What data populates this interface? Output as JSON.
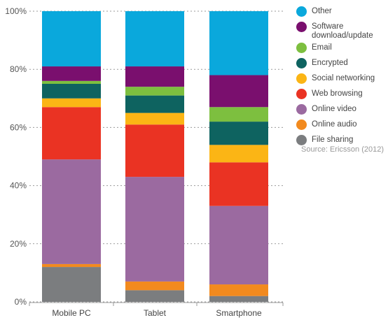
{
  "chart_data": {
    "type": "bar",
    "stacked": true,
    "percent": true,
    "categories": [
      "Mobile PC",
      "Tablet",
      "Smartphone"
    ],
    "ylim": [
      0,
      100
    ],
    "yticks": [
      "0%",
      "20%",
      "40%",
      "60%",
      "80%",
      "100%"
    ],
    "ytick_values": [
      0,
      20,
      40,
      60,
      80,
      100
    ],
    "grid": "dotted horizontal",
    "legend_position": "right",
    "series": [
      {
        "name": "File sharing",
        "color": "#7b7d7f",
        "values": [
          12,
          4,
          2
        ]
      },
      {
        "name": "Online audio",
        "color": "#f28a1e",
        "values": [
          1,
          3,
          4
        ]
      },
      {
        "name": "Online video",
        "color": "#9b6aa0",
        "values": [
          36,
          36,
          27
        ]
      },
      {
        "name": "Web browsing",
        "color": "#ea3323",
        "values": [
          18,
          18,
          15
        ]
      },
      {
        "name": "Social networking",
        "color": "#fbb515",
        "values": [
          3,
          4,
          6
        ]
      },
      {
        "name": "Encrypted",
        "color": "#0e6360",
        "values": [
          5,
          6,
          8
        ]
      },
      {
        "name": "Email",
        "color": "#7dbf3f",
        "values": [
          1,
          3,
          5
        ]
      },
      {
        "name": "Software\ndownload/update",
        "color": "#7a0f6e",
        "values": [
          5,
          7,
          11
        ]
      },
      {
        "name": "Other",
        "color": "#0aa8dc",
        "values": [
          19,
          19,
          22
        ]
      }
    ]
  },
  "source": "Source: Ericsson (2012)"
}
